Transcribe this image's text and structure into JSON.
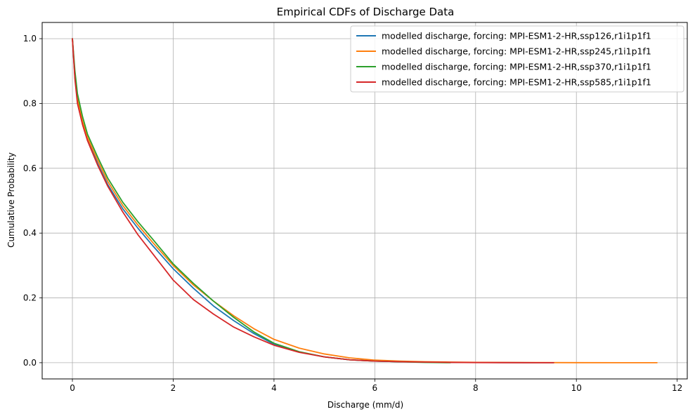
{
  "chart_data": {
    "type": "line",
    "title": "Empirical CDFs of Discharge Data",
    "xlabel": "Discharge (mm/d)",
    "ylabel": "Cumulative Probability",
    "xlim": [
      -0.6,
      12.2
    ],
    "ylim": [
      -0.05,
      1.05
    ],
    "xticks": [
      0,
      2,
      4,
      6,
      8,
      10,
      12
    ],
    "xtick_labels": [
      "0",
      "2",
      "4",
      "6",
      "8",
      "10",
      "12"
    ],
    "yticks": [
      0.0,
      0.2,
      0.4,
      0.6,
      0.8,
      1.0
    ],
    "ytick_labels": [
      "0.0",
      "0.2",
      "0.4",
      "0.6",
      "0.8",
      "1.0"
    ],
    "grid": true,
    "legend_position": "top-right",
    "series": [
      {
        "name": "modelled discharge, forcing: MPI-ESM1-2-HR,ssp126,r1i1p1f1",
        "color": "#1f77b4",
        "x": [
          0,
          0.05,
          0.1,
          0.2,
          0.3,
          0.5,
          0.7,
          1.0,
          1.3,
          1.6,
          2.0,
          2.4,
          2.8,
          3.2,
          3.6,
          4.0,
          4.5,
          5.0,
          5.5,
          6.0,
          6.5,
          7.0,
          7.5,
          8.0,
          8.5,
          9.0,
          9.55
        ],
        "y": [
          1.0,
          0.88,
          0.81,
          0.74,
          0.69,
          0.615,
          0.55,
          0.475,
          0.415,
          0.36,
          0.29,
          0.23,
          0.175,
          0.13,
          0.09,
          0.057,
          0.033,
          0.018,
          0.009,
          0.005,
          0.003,
          0.002,
          0.001,
          0.001,
          0.0005,
          0.0002,
          0.0
        ]
      },
      {
        "name": "modelled discharge, forcing: MPI-ESM1-2-HR,ssp245,r1i1p1f1",
        "color": "#ff7f0e",
        "x": [
          0,
          0.05,
          0.1,
          0.2,
          0.3,
          0.5,
          0.7,
          1.0,
          1.3,
          1.6,
          2.0,
          2.4,
          2.8,
          3.2,
          3.6,
          4.0,
          4.5,
          5.0,
          5.5,
          6.0,
          6.5,
          7.0,
          7.5,
          8.0,
          9.0,
          10.0,
          11.0,
          11.6
        ],
        "y": [
          1.0,
          0.885,
          0.815,
          0.745,
          0.695,
          0.625,
          0.56,
          0.485,
          0.425,
          0.37,
          0.3,
          0.24,
          0.19,
          0.145,
          0.105,
          0.072,
          0.045,
          0.027,
          0.015,
          0.008,
          0.005,
          0.003,
          0.002,
          0.001,
          0.0005,
          0.0002,
          0.0001,
          0.0
        ]
      },
      {
        "name": "modelled discharge, forcing: MPI-ESM1-2-HR,ssp370,r1i1p1f1",
        "color": "#2ca02c",
        "x": [
          0,
          0.05,
          0.1,
          0.2,
          0.3,
          0.5,
          0.7,
          1.0,
          1.3,
          1.6,
          2.0,
          2.4,
          2.8,
          3.2,
          3.6,
          4.0,
          4.5,
          5.0,
          5.5,
          6.0,
          6.5,
          7.0,
          7.5
        ],
        "y": [
          1.0,
          0.9,
          0.83,
          0.76,
          0.705,
          0.635,
          0.57,
          0.495,
          0.435,
          0.38,
          0.305,
          0.245,
          0.19,
          0.14,
          0.095,
          0.06,
          0.034,
          0.018,
          0.009,
          0.005,
          0.003,
          0.001,
          0.0
        ]
      },
      {
        "name": "modelled discharge, forcing: MPI-ESM1-2-HR,ssp585,r1i1p1f1",
        "color": "#d62728",
        "x": [
          0,
          0.05,
          0.1,
          0.2,
          0.3,
          0.5,
          0.7,
          1.0,
          1.3,
          1.6,
          2.0,
          2.4,
          2.8,
          3.2,
          3.6,
          4.0,
          4.5,
          5.0,
          5.5,
          6.0,
          6.5,
          7.0,
          7.5,
          8.0,
          8.5,
          9.0,
          9.55
        ],
        "y": [
          1.0,
          0.875,
          0.8,
          0.735,
          0.685,
          0.61,
          0.545,
          0.465,
          0.395,
          0.335,
          0.255,
          0.195,
          0.15,
          0.11,
          0.08,
          0.054,
          0.032,
          0.018,
          0.009,
          0.005,
          0.003,
          0.002,
          0.001,
          0.0005,
          0.0002,
          0.0001,
          0.0
        ]
      }
    ]
  }
}
